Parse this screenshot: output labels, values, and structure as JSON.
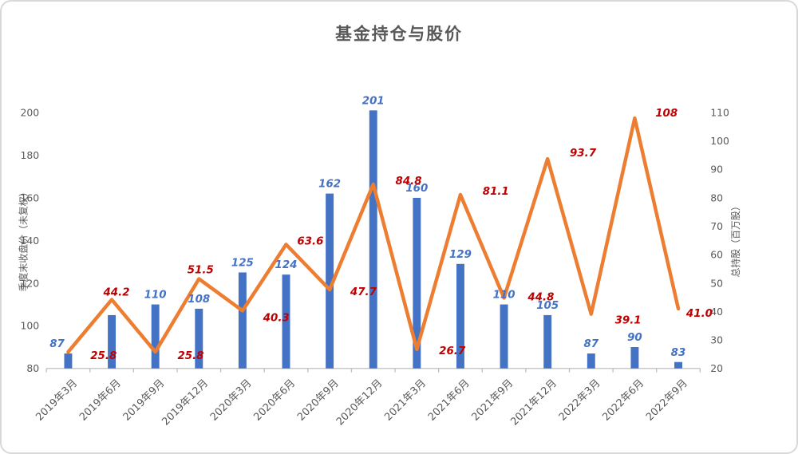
{
  "title": "基金持仓与股价",
  "colors": {
    "bar": "#4472C4",
    "line": "#ED7D31",
    "bar_label": "#4472C4",
    "line_label": "#C00000",
    "axis_text": "#595959",
    "axis_line": "#BFBFBF",
    "title_text": "#595959",
    "card_border": "#D9D9D9",
    "background": "#FFFFFF"
  },
  "chart_data": {
    "type": "combo-bar-line",
    "title": "基金持仓与股价",
    "categories": [
      "2019年3月",
      "2019年6月",
      "2019年9月",
      "2019年12月",
      "2020年3月",
      "2020年6月",
      "2020年9月",
      "2020年12月",
      "2021年3月",
      "2021年6月",
      "2021年9月",
      "2021年12月",
      "2022年3月",
      "2022年6月",
      "2022年9月"
    ],
    "series": [
      {
        "name": "季度末收盘价（未复权）",
        "type": "bar",
        "axis": "left",
        "values": [
          87,
          105,
          110,
          108,
          125,
          124,
          162,
          201,
          160,
          129,
          110,
          105,
          87,
          90,
          83
        ],
        "labels": [
          "87",
          "",
          "110",
          "108",
          "125",
          "124",
          "162",
          "201",
          "160",
          "129",
          "110",
          "105",
          "87",
          "90",
          "83"
        ]
      },
      {
        "name": "总持股（百万股）",
        "type": "line",
        "axis": "right",
        "values": [
          25.8,
          44.2,
          25.8,
          51.5,
          40.3,
          63.6,
          47.7,
          84.8,
          26.7,
          81.1,
          44.8,
          93.7,
          39.1,
          108,
          41.0
        ],
        "labels": [
          "25.8",
          "44.2",
          "25.8",
          "51.5",
          "40.3",
          "63.6",
          "47.7",
          "84.8",
          "26.7",
          "81.1",
          "44.8",
          "93.7",
          "39.1",
          "108",
          "41.0"
        ]
      }
    ],
    "left_axis": {
      "title": "季度末收盘价（未复权）",
      "min": 80,
      "max": 200,
      "ticks": [
        80,
        100,
        120,
        140,
        160,
        180,
        200
      ]
    },
    "right_axis": {
      "title": "总持股（百万股）",
      "min": 20,
      "max": 110,
      "ticks": [
        20,
        30,
        40,
        50,
        60,
        70,
        80,
        90,
        100,
        110
      ]
    },
    "gridlines": false,
    "legend": "none"
  }
}
